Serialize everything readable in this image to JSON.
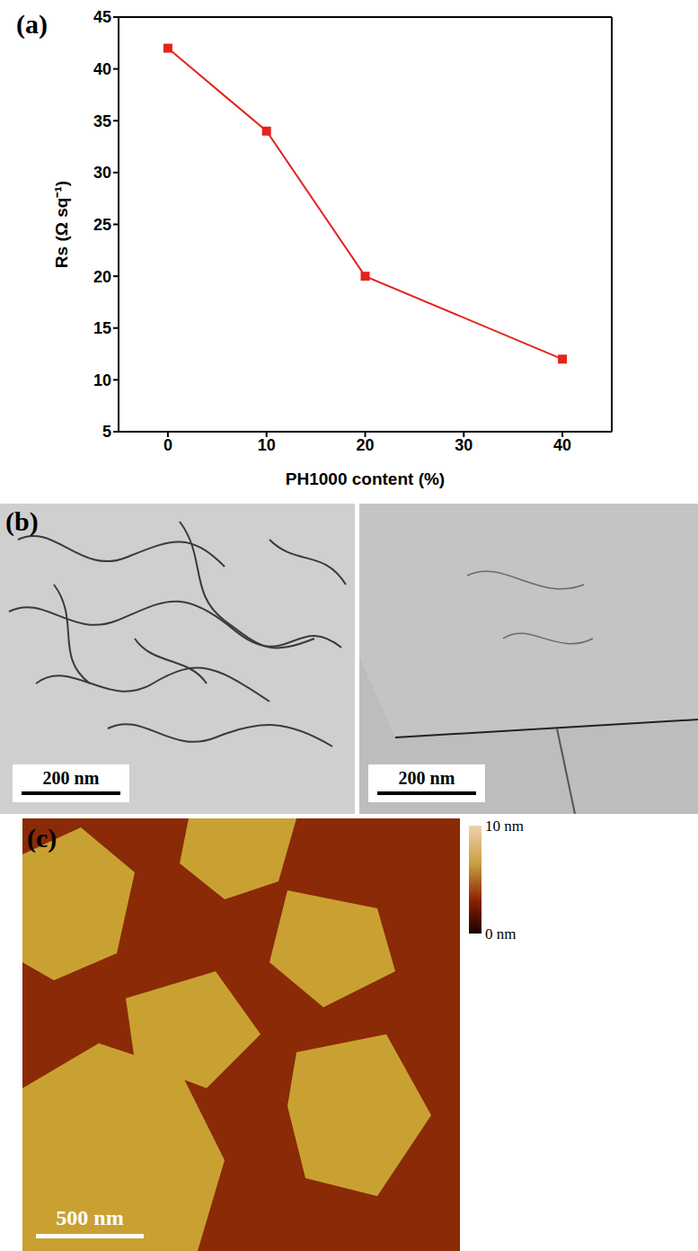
{
  "chart_data": {
    "type": "line",
    "x": [
      0,
      10,
      20,
      40
    ],
    "values": [
      42,
      34,
      20,
      12
    ],
    "color": "#e3241c",
    "marker": "square",
    "x_label": "PH1000 content (%)",
    "y_label": "Rs (Ω sq⁻¹)",
    "xlim": [
      -5,
      45
    ],
    "xticks": [
      0,
      10,
      20,
      30,
      40
    ],
    "ylim": [
      5,
      45
    ],
    "yticks": [
      5,
      10,
      15,
      20,
      25,
      30,
      35,
      40,
      45
    ],
    "grid": false
  },
  "figure": {
    "panels": [
      {
        "label": "(a)"
      },
      {
        "label": "(b)",
        "scale_bars": [
          "200 nm",
          "200 nm"
        ]
      },
      {
        "label": "(c)",
        "scale_bar": "500 nm",
        "color_bar": {
          "range": [
            0,
            10
          ],
          "ticks": [
            {
              "value": 10,
              "label": "10 nm"
            },
            {
              "value": 0,
              "label": "0 nm"
            }
          ]
        }
      }
    ]
  }
}
